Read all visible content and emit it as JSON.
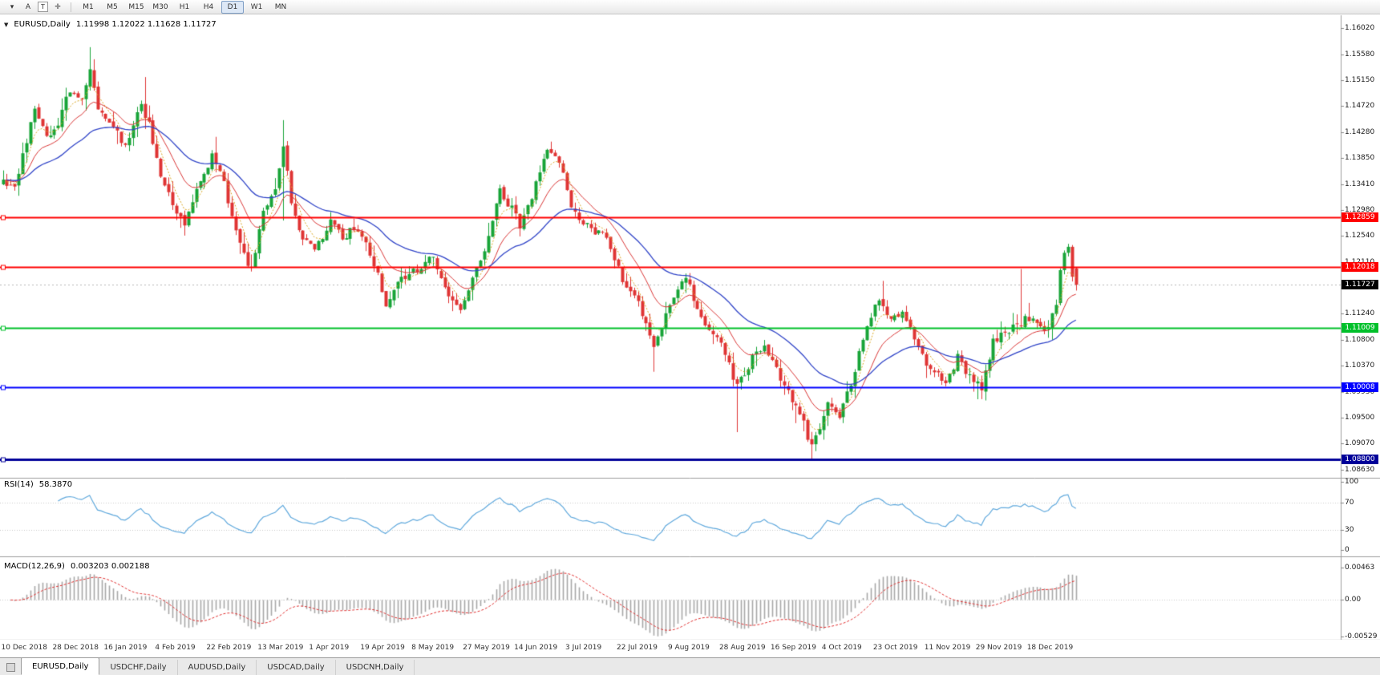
{
  "toolbar": {
    "icon_buttons": [
      {
        "name": "chart-menu-caret-icon",
        "glyph": "▾",
        "boxed": false
      },
      {
        "name": "cursor-tool-button",
        "glyph": "A",
        "boxed": false
      },
      {
        "name": "text-tool-button",
        "glyph": "T",
        "boxed": true
      },
      {
        "name": "crosshair-tool-icon",
        "glyph": "✛",
        "boxed": false
      }
    ],
    "timeframes": [
      "M1",
      "M5",
      "M15",
      "M30",
      "H1",
      "H4",
      "D1",
      "W1",
      "MN"
    ],
    "active_timeframe": "D1"
  },
  "chart": {
    "header": {
      "collapse_icon": "▼",
      "symbol_period": "EURUSD,Daily",
      "ohlc": "1.11998 1.12022 1.11628 1.11727"
    }
  },
  "price_axis": {
    "labels": [
      "1.16020",
      "1.15580",
      "1.15150",
      "1.14720",
      "1.14280",
      "1.13850",
      "1.13410",
      "1.12980",
      "1.12540",
      "1.12110",
      "1.11670",
      "1.11240",
      "1.10800",
      "1.10370",
      "1.09930",
      "1.09500",
      "1.09070",
      "1.08630"
    ]
  },
  "levels": [
    {
      "label": "1.12859",
      "price": 1.12859,
      "color": "#FF0000",
      "width": 2,
      "name": "resistance-line-112859"
    },
    {
      "label": "1.12018",
      "price": 1.12018,
      "color": "#FF0000",
      "width": 2,
      "name": "resistance-line-112018"
    },
    {
      "label": "1.11009",
      "price": 1.11009,
      "color": "#00C02A",
      "width": 2,
      "name": "support-line-111009"
    },
    {
      "label": "1.10008",
      "price": 1.10008,
      "color": "#0000FF",
      "width": 2,
      "name": "support-line-110008"
    },
    {
      "label": "1.08800",
      "price": 1.088,
      "color": "#000099",
      "width": 3,
      "name": "support-line-108800"
    }
  ],
  "current_price": {
    "label": "1.11727",
    "price": 1.11727,
    "bg": "#000000"
  },
  "rsi": {
    "title": "RSI(14)",
    "value": "58.3870",
    "line_color": "#5FA8DC",
    "levels": [
      70,
      30
    ],
    "axis": [
      {
        "label": "100",
        "value": 100
      },
      {
        "label": "70",
        "value": 70
      },
      {
        "label": "30",
        "value": 30
      },
      {
        "label": "0",
        "value": 0
      }
    ]
  },
  "macd": {
    "title": "MACD(12,26,9)",
    "values": "0.003203 0.002188",
    "histogram_color": "#A8A8A8",
    "signal_color": "#E03030",
    "axis": [
      {
        "label": "0.00463",
        "value": 0.00463
      },
      {
        "label": "0.00",
        "value": 0
      },
      {
        "label": "-0.00529",
        "value": -0.00529
      }
    ]
  },
  "time_axis": {
    "labels": [
      "10 Dec 2018",
      "28 Dec 2018",
      "16 Jan 2019",
      "4 Feb 2019",
      "22 Feb 2019",
      "13 Mar 2019",
      "1 Apr 2019",
      "19 Apr 2019",
      "8 May 2019",
      "27 May 2019",
      "14 Jun 2019",
      "3 Jul 2019",
      "22 Jul 2019",
      "9 Aug 2019",
      "28 Aug 2019",
      "16 Sep 2019",
      "4 Oct 2019",
      "23 Oct 2019",
      "11 Nov 2019",
      "29 Nov 2019",
      "18 Dec 2019"
    ]
  },
  "bottom_tabs": [
    {
      "label": "EURUSD,Daily",
      "active": true
    },
    {
      "label": "USDCHF,Daily",
      "active": false
    },
    {
      "label": "AUDUSD,Daily",
      "active": false
    },
    {
      "label": "USDCAD,Daily",
      "active": false
    },
    {
      "label": "USDCNH,Daily",
      "active": false
    }
  ],
  "chart_data": {
    "type": "candlestick",
    "symbol": "EURUSD",
    "timeframe": "Daily",
    "bars": 273,
    "price_axis_range": {
      "top": 1.1602,
      "bottom": 1.0863
    },
    "last_bar": {
      "o": 1.11998,
      "h": 1.12022,
      "l": 1.11628,
      "c": 1.11727
    },
    "up_color": "#18A438",
    "down_color": "#DF3434",
    "ma_lines": [
      {
        "period": 34,
        "color": "#2F43C7",
        "style": "solid"
      },
      {
        "period": 13,
        "color": "#D93636",
        "style": "solid"
      },
      {
        "period": 5,
        "color": "#D9A520",
        "style": "dashed"
      }
    ],
    "horizontal_levels": [
      1.12859,
      1.12018,
      1.11009,
      1.10008,
      1.088
    ],
    "indicators": {
      "rsi": {
        "period": 14,
        "current": 58.387
      },
      "macd": {
        "fast": 12,
        "slow": 26,
        "signal": 9,
        "current_main": 0.003203,
        "current_signal": 0.002188
      }
    },
    "anchors": [
      [
        0,
        1.1345
      ],
      [
        3,
        1.133
      ],
      [
        8,
        1.147
      ],
      [
        11,
        1.142
      ],
      [
        14,
        1.1445
      ],
      [
        17,
        1.15
      ],
      [
        20,
        1.148
      ],
      [
        22,
        1.153
      ],
      [
        24,
        1.147
      ],
      [
        27,
        1.145
      ],
      [
        31,
        1.14
      ],
      [
        35,
        1.1475
      ],
      [
        37,
        1.144
      ],
      [
        40,
        1.136
      ],
      [
        43,
        1.131
      ],
      [
        46,
        1.127
      ],
      [
        49,
        1.133
      ],
      [
        53,
        1.139
      ],
      [
        56,
        1.134
      ],
      [
        60,
        1.124
      ],
      [
        63,
        1.1195
      ],
      [
        66,
        1.13
      ],
      [
        69,
        1.133
      ],
      [
        71,
        1.1405
      ],
      [
        73,
        1.131
      ],
      [
        76,
        1.125
      ],
      [
        79,
        1.123
      ],
      [
        83,
        1.128
      ],
      [
        86,
        1.125
      ],
      [
        89,
        1.127
      ],
      [
        92,
        1.124
      ],
      [
        95,
        1.119
      ],
      [
        97,
        1.114
      ],
      [
        100,
        1.118
      ],
      [
        105,
        1.12
      ],
      [
        109,
        1.122
      ],
      [
        113,
        1.115
      ],
      [
        116,
        1.113
      ],
      [
        118,
        1.117
      ],
      [
        122,
        1.123
      ],
      [
        126,
        1.133
      ],
      [
        129,
        1.13
      ],
      [
        131,
        1.127
      ],
      [
        134,
        1.132
      ],
      [
        138,
        1.1395
      ],
      [
        141,
        1.138
      ],
      [
        144,
        1.13
      ],
      [
        148,
        1.127
      ],
      [
        153,
        1.125
      ],
      [
        157,
        1.118
      ],
      [
        161,
        1.114
      ],
      [
        165,
        1.107
      ],
      [
        168,
        1.112
      ],
      [
        170,
        1.115
      ],
      [
        173,
        1.119
      ],
      [
        176,
        1.113
      ],
      [
        180,
        1.109
      ],
      [
        183,
        1.106
      ],
      [
        186,
        1.1
      ],
      [
        190,
        1.105
      ],
      [
        193,
        1.107
      ],
      [
        196,
        1.103
      ],
      [
        200,
        1.098
      ],
      [
        203,
        1.094
      ],
      [
        205,
        1.09
      ],
      [
        209,
        1.097
      ],
      [
        212,
        1.095
      ],
      [
        215,
        1.101
      ],
      [
        219,
        1.11
      ],
      [
        222,
        1.115
      ],
      [
        225,
        1.111
      ],
      [
        228,
        1.113
      ],
      [
        231,
        1.108
      ],
      [
        235,
        1.103
      ],
      [
        239,
        1.101
      ],
      [
        242,
        1.105
      ],
      [
        245,
        1.102
      ],
      [
        248,
        1.1
      ],
      [
        251,
        1.108
      ],
      [
        254,
        1.109
      ],
      [
        258,
        1.111
      ],
      [
        261,
        1.112
      ],
      [
        264,
        1.109
      ],
      [
        267,
        1.114
      ],
      [
        268,
        1.1195
      ],
      [
        270,
        1.1235
      ],
      [
        271,
        1.1185
      ],
      [
        272,
        1.11727
      ]
    ],
    "bar_overrides": {
      "22": {
        "h": 1.157
      },
      "36": {
        "h": 1.152
      },
      "54": {
        "h": 1.142
      },
      "71": {
        "h": 1.1448,
        "l": 1.128
      },
      "139": {
        "h": 1.1412
      },
      "165": {
        "l": 1.1027
      },
      "186": {
        "l": 1.0926
      },
      "201": {
        "l": 1.0941
      },
      "205": {
        "l": 1.0879
      },
      "223": {
        "h": 1.1179
      },
      "247": {
        "l": 1.0981
      },
      "258": {
        "h": 1.1199
      },
      "268": {
        "o": 1.1142,
        "c": 1.1197,
        "h": 1.12,
        "l": 1.1138
      },
      "269": {
        "o": 1.1197,
        "c": 1.1226,
        "h": 1.123,
        "l": 1.119
      },
      "270": {
        "o": 1.1226,
        "c": 1.1236,
        "h": 1.1241,
        "l": 1.122
      },
      "271": {
        "o": 1.1236,
        "c": 1.1186,
        "h": 1.1239,
        "l": 1.1178
      },
      "272": {
        "o": 1.11998,
        "c": 1.11727,
        "h": 1.12022,
        "l": 1.11628
      }
    }
  }
}
